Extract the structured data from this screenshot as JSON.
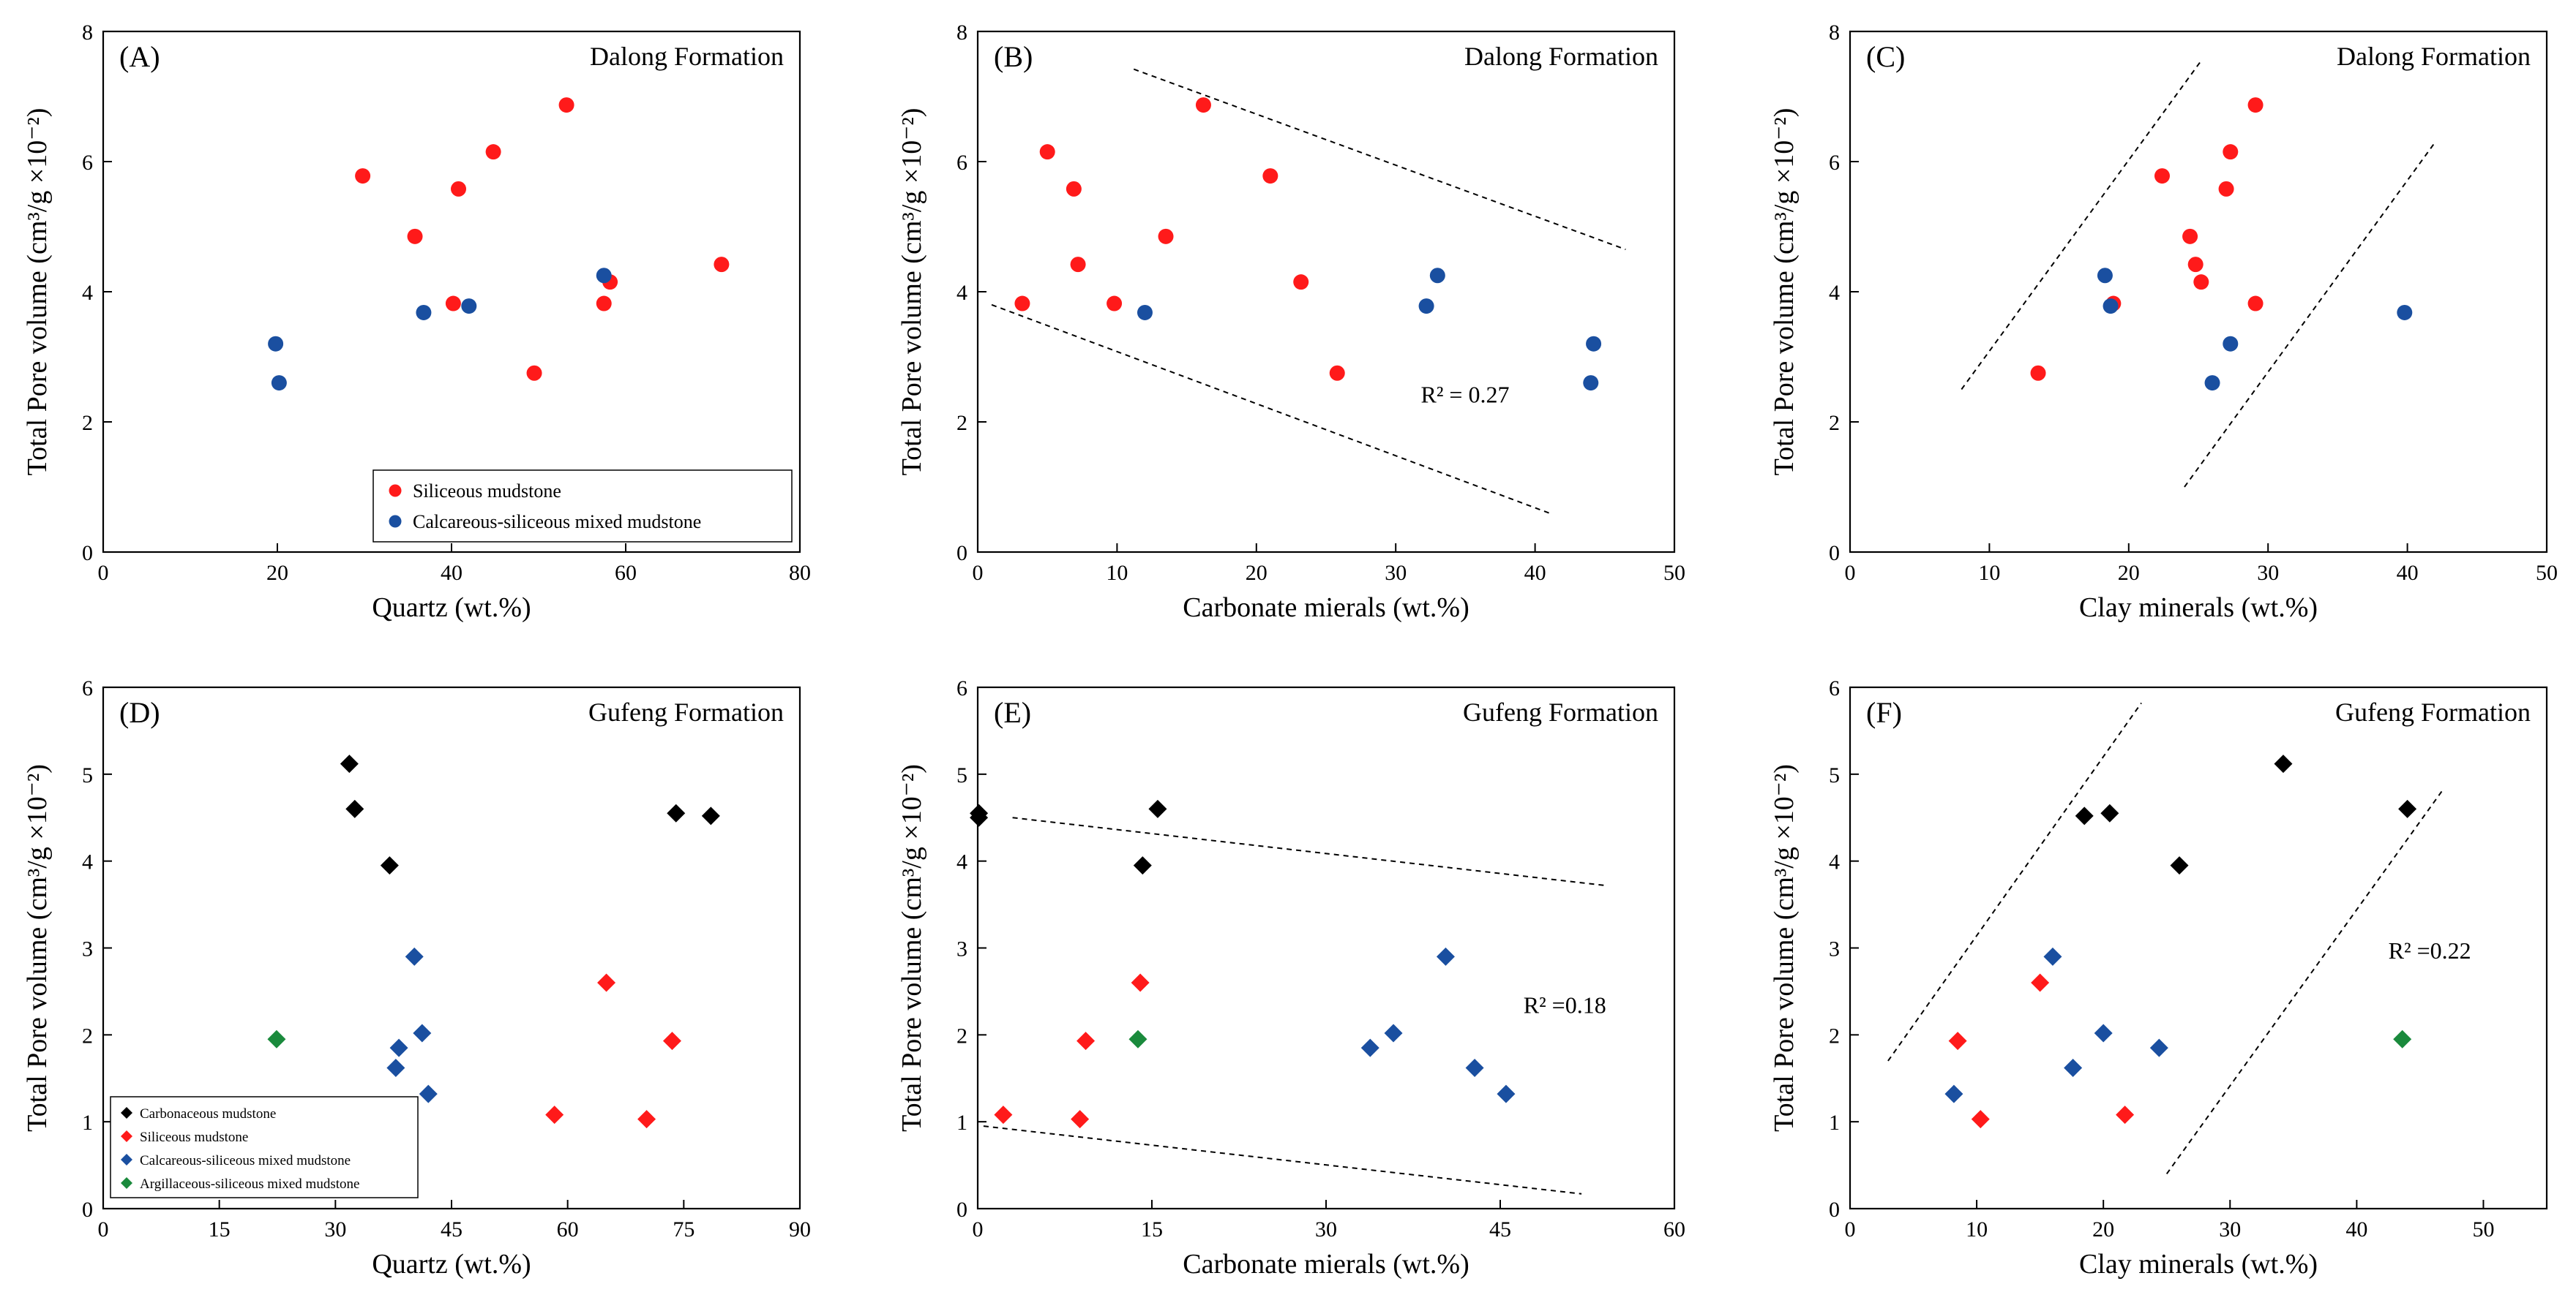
{
  "colors": {
    "siliceous": "#ff1a1a",
    "calcareous_siliceous": "#1a4fa0",
    "carbonaceous": "#000000",
    "argillaceous_siliceous": "#1a8a3c"
  },
  "chart_data": [
    {
      "id": "A",
      "type": "scatter",
      "panel_label": "(A)",
      "title": "Dalong Formation",
      "xlabel": "Quartz (wt.%)",
      "ylabel": "Total Pore volume (cm³/g ×10⁻²)",
      "xlim": [
        0,
        80
      ],
      "ylim": [
        0,
        8
      ],
      "xticks": [
        0,
        20,
        40,
        60,
        80
      ],
      "yticks": [
        0,
        2,
        4,
        6,
        8
      ],
      "xtick_labels": [
        "0",
        "20",
        "40",
        "60",
        "80"
      ],
      "ytick_labels": [
        "0",
        "2",
        "4",
        "6",
        "8"
      ],
      "marker": "circle",
      "legend": [
        "Siliceous mudstone",
        "Calcareous-siliceous mixed mudstone"
      ],
      "series": [
        {
          "name": "Siliceous mudstone",
          "color_key": "siliceous",
          "points": [
            [
              29.8,
              5.78
            ],
            [
              35.8,
              4.85
            ],
            [
              40.2,
              3.82
            ],
            [
              40.8,
              5.58
            ],
            [
              44.8,
              6.15
            ],
            [
              49.5,
              2.75
            ],
            [
              53.2,
              6.87
            ],
            [
              57.5,
              3.82
            ],
            [
              58.2,
              4.15
            ],
            [
              71.0,
              4.42
            ]
          ]
        },
        {
          "name": "Calcareous-siliceous mixed mudstone",
          "color_key": "calcareous_siliceous",
          "points": [
            [
              19.8,
              3.2
            ],
            [
              20.2,
              2.6
            ],
            [
              36.8,
              3.68
            ],
            [
              42.0,
              3.78
            ],
            [
              57.5,
              4.25
            ]
          ]
        }
      ],
      "trend_lines": [],
      "annotation": ""
    },
    {
      "id": "B",
      "type": "scatter",
      "panel_label": "(B)",
      "title": "Dalong Formation",
      "xlabel": "Carbonate mierals (wt.%)",
      "ylabel": "Total Pore volume (cm³/g ×10⁻²)",
      "xlim": [
        0,
        50
      ],
      "ylim": [
        0,
        8
      ],
      "xticks": [
        0,
        10,
        20,
        30,
        40,
        50
      ],
      "yticks": [
        0,
        2,
        4,
        6,
        8
      ],
      "xtick_labels": [
        "0",
        "10",
        "20",
        "30",
        "40",
        "50"
      ],
      "ytick_labels": [
        "0",
        "2",
        "4",
        "6",
        "8"
      ],
      "marker": "circle",
      "legend": [],
      "series": [
        {
          "name": "Siliceous mudstone",
          "color_key": "siliceous",
          "points": [
            [
              3.2,
              3.82
            ],
            [
              5.0,
              6.15
            ],
            [
              6.9,
              5.58
            ],
            [
              7.2,
              4.42
            ],
            [
              9.8,
              3.82
            ],
            [
              13.5,
              4.85
            ],
            [
              16.2,
              6.87
            ],
            [
              21.0,
              5.78
            ],
            [
              23.2,
              4.15
            ],
            [
              25.8,
              2.75
            ]
          ]
        },
        {
          "name": "Calcareous-siliceous mixed mudstone",
          "color_key": "calcareous_siliceous",
          "points": [
            [
              12.0,
              3.68
            ],
            [
              32.2,
              3.78
            ],
            [
              33.0,
              4.25
            ],
            [
              44.2,
              3.2
            ],
            [
              44.0,
              2.6
            ]
          ]
        }
      ],
      "trend_lines": [
        [
          [
            11.2,
            7.42
          ],
          [
            46.5,
            4.65
          ]
        ],
        [
          [
            1.0,
            3.8
          ],
          [
            41.0,
            0.6
          ]
        ]
      ],
      "annotation": "R² = 0.27",
      "annotation_pos": [
        31.8,
        2.3
      ]
    },
    {
      "id": "C",
      "type": "scatter",
      "panel_label": "(C)",
      "title": "Dalong Formation",
      "xlabel": "Clay minerals (wt.%)",
      "ylabel": "Total Pore volume (cm³/g ×10⁻²)",
      "xlim": [
        0,
        50
      ],
      "ylim": [
        0,
        8
      ],
      "xticks": [
        0,
        10,
        20,
        30,
        40,
        50
      ],
      "yticks": [
        0,
        2,
        4,
        6,
        8
      ],
      "xtick_labels": [
        "0",
        "10",
        "20",
        "30",
        "40",
        "50"
      ],
      "ytick_labels": [
        "0",
        "2",
        "4",
        "6",
        "8"
      ],
      "marker": "circle",
      "legend": [],
      "series": [
        {
          "name": "Siliceous mudstone",
          "color_key": "siliceous",
          "points": [
            [
              13.5,
              2.75
            ],
            [
              18.9,
              3.82
            ],
            [
              22.4,
              5.78
            ],
            [
              24.4,
              4.85
            ],
            [
              24.8,
              4.42
            ],
            [
              25.2,
              4.15
            ],
            [
              27.0,
              5.58
            ],
            [
              27.3,
              6.15
            ],
            [
              29.1,
              6.87
            ],
            [
              29.1,
              3.82
            ]
          ]
        },
        {
          "name": "Calcareous-siliceous mixed mudstone",
          "color_key": "calcareous_siliceous",
          "points": [
            [
              18.3,
              4.25
            ],
            [
              18.7,
              3.78
            ],
            [
              26.0,
              2.6
            ],
            [
              27.3,
              3.2
            ],
            [
              39.8,
              3.68
            ]
          ]
        }
      ],
      "trend_lines": [
        [
          [
            8.0,
            2.5
          ],
          [
            25.2,
            7.55
          ]
        ],
        [
          [
            24.0,
            1.0
          ],
          [
            42.0,
            6.3
          ]
        ]
      ],
      "annotation": ""
    },
    {
      "id": "D",
      "type": "scatter",
      "panel_label": "(D)",
      "title": "Gufeng Formation",
      "xlabel": "Quartz (wt.%)",
      "ylabel": "Total Pore volume (cm³/g ×10⁻²)",
      "xlim": [
        0,
        90
      ],
      "ylim": [
        0,
        6
      ],
      "xticks": [
        0,
        15,
        30,
        45,
        60,
        75,
        90
      ],
      "yticks": [
        0,
        1,
        2,
        3,
        4,
        5,
        6
      ],
      "xtick_labels": [
        "0",
        "15",
        "30",
        "45",
        "60",
        "75",
        "90"
      ],
      "ytick_labels": [
        "0",
        "1",
        "2",
        "3",
        "4",
        "5",
        "6"
      ],
      "marker": "diamond",
      "legend": [
        "Carbonaceous mudstone",
        "Siliceous mudstone",
        "Calcareous-siliceous mixed mudstone",
        "Argillaceous-siliceous mixed mudstone"
      ],
      "series": [
        {
          "name": "Carbonaceous mudstone",
          "color_key": "carbonaceous",
          "points": [
            [
              31.8,
              5.12
            ],
            [
              32.5,
              4.6
            ],
            [
              37.0,
              3.95
            ],
            [
              74.0,
              4.55
            ],
            [
              78.5,
              4.52
            ]
          ]
        },
        {
          "name": "Siliceous mudstone",
          "color_key": "siliceous",
          "points": [
            [
              58.3,
              1.08
            ],
            [
              65.0,
              2.6
            ],
            [
              70.2,
              1.03
            ],
            [
              73.5,
              1.93
            ]
          ]
        },
        {
          "name": "Calcareous-siliceous mixed mudstone",
          "color_key": "calcareous_siliceous",
          "points": [
            [
              37.8,
              1.62
            ],
            [
              38.2,
              1.85
            ],
            [
              40.2,
              2.9
            ],
            [
              41.2,
              2.02
            ],
            [
              42.0,
              1.32
            ]
          ]
        },
        {
          "name": "Argillaceous-siliceous mixed mudstone",
          "color_key": "argillaceous_siliceous",
          "points": [
            [
              22.4,
              1.95
            ]
          ]
        }
      ],
      "trend_lines": [],
      "annotation": ""
    },
    {
      "id": "E",
      "type": "scatter",
      "panel_label": "(E)",
      "title": "Gufeng Formation",
      "xlabel": "Carbonate mierals (wt.%)",
      "ylabel": "Total Pore volume (cm³/g ×10⁻²)",
      "xlim": [
        0,
        60
      ],
      "ylim": [
        0,
        6
      ],
      "xticks": [
        0,
        15,
        30,
        45,
        60
      ],
      "yticks": [
        0,
        1,
        2,
        3,
        4,
        5,
        6
      ],
      "xtick_labels": [
        "0",
        "15",
        "30",
        "45",
        "60"
      ],
      "ytick_labels": [
        "0",
        "1",
        "2",
        "3",
        "4",
        "5",
        "6"
      ],
      "marker": "diamond",
      "legend": [],
      "series": [
        {
          "name": "Carbonaceous mudstone",
          "color_key": "carbonaceous",
          "points": [
            [
              0.1,
              4.55
            ],
            [
              0.1,
              4.5
            ],
            [
              14.2,
              3.95
            ],
            [
              15.5,
              4.6
            ]
          ]
        },
        {
          "name": "Siliceous mudstone",
          "color_key": "siliceous",
          "points": [
            [
              2.2,
              1.08
            ],
            [
              8.8,
              1.03
            ],
            [
              9.3,
              1.93
            ],
            [
              14.0,
              2.6
            ]
          ]
        },
        {
          "name": "Calcareous-siliceous mixed mudstone",
          "color_key": "calcareous_siliceous",
          "points": [
            [
              33.8,
              1.85
            ],
            [
              35.8,
              2.02
            ],
            [
              40.3,
              2.9
            ],
            [
              42.8,
              1.62
            ],
            [
              45.5,
              1.32
            ]
          ]
        },
        {
          "name": "Argillaceous-siliceous mixed mudstone",
          "color_key": "argillaceous_siliceous",
          "points": [
            [
              13.8,
              1.95
            ]
          ]
        }
      ],
      "trend_lines": [
        [
          [
            3.0,
            4.5
          ],
          [
            54.0,
            3.72
          ]
        ],
        [
          [
            0.5,
            0.95
          ],
          [
            52.0,
            0.17
          ]
        ]
      ],
      "annotation": "R² =0.18",
      "annotation_pos": [
        47.0,
        2.25
      ]
    },
    {
      "id": "F",
      "type": "scatter",
      "panel_label": "(F)",
      "title": "Gufeng Formation",
      "xlabel": "Clay minerals (wt.%)",
      "ylabel": "Total Pore volume (cm³/g ×10⁻²)",
      "xlim": [
        0,
        55
      ],
      "ylim": [
        0,
        6
      ],
      "xticks": [
        0,
        10,
        20,
        30,
        40,
        50
      ],
      "yticks": [
        0,
        1,
        2,
        3,
        4,
        5,
        6
      ],
      "xtick_labels": [
        "0",
        "10",
        "20",
        "30",
        "40",
        "50"
      ],
      "ytick_labels": [
        "0",
        "1",
        "2",
        "3",
        "4",
        "5",
        "6"
      ],
      "marker": "diamond",
      "legend": [],
      "series": [
        {
          "name": "Carbonaceous mudstone",
          "color_key": "carbonaceous",
          "points": [
            [
              18.5,
              4.52
            ],
            [
              20.5,
              4.55
            ],
            [
              26.0,
              3.95
            ],
            [
              34.2,
              5.12
            ],
            [
              44.0,
              4.6
            ]
          ]
        },
        {
          "name": "Siliceous mudstone",
          "color_key": "siliceous",
          "points": [
            [
              8.5,
              1.93
            ],
            [
              10.3,
              1.03
            ],
            [
              15.0,
              2.6
            ],
            [
              21.7,
              1.08
            ]
          ]
        },
        {
          "name": "Calcareous-siliceous mixed mudstone",
          "color_key": "calcareous_siliceous",
          "points": [
            [
              8.2,
              1.32
            ],
            [
              16.0,
              2.9
            ],
            [
              17.6,
              1.62
            ],
            [
              20.0,
              2.02
            ],
            [
              24.4,
              1.85
            ]
          ]
        },
        {
          "name": "Argillaceous-siliceous mixed mudstone",
          "color_key": "argillaceous_siliceous",
          "points": [
            [
              43.6,
              1.95
            ]
          ]
        }
      ],
      "trend_lines": [
        [
          [
            3.0,
            1.7
          ],
          [
            23.0,
            5.82
          ]
        ],
        [
          [
            25.0,
            0.4
          ],
          [
            46.8,
            4.82
          ]
        ]
      ],
      "annotation": "R² =0.22",
      "annotation_pos": [
        42.5,
        2.88
      ]
    }
  ]
}
